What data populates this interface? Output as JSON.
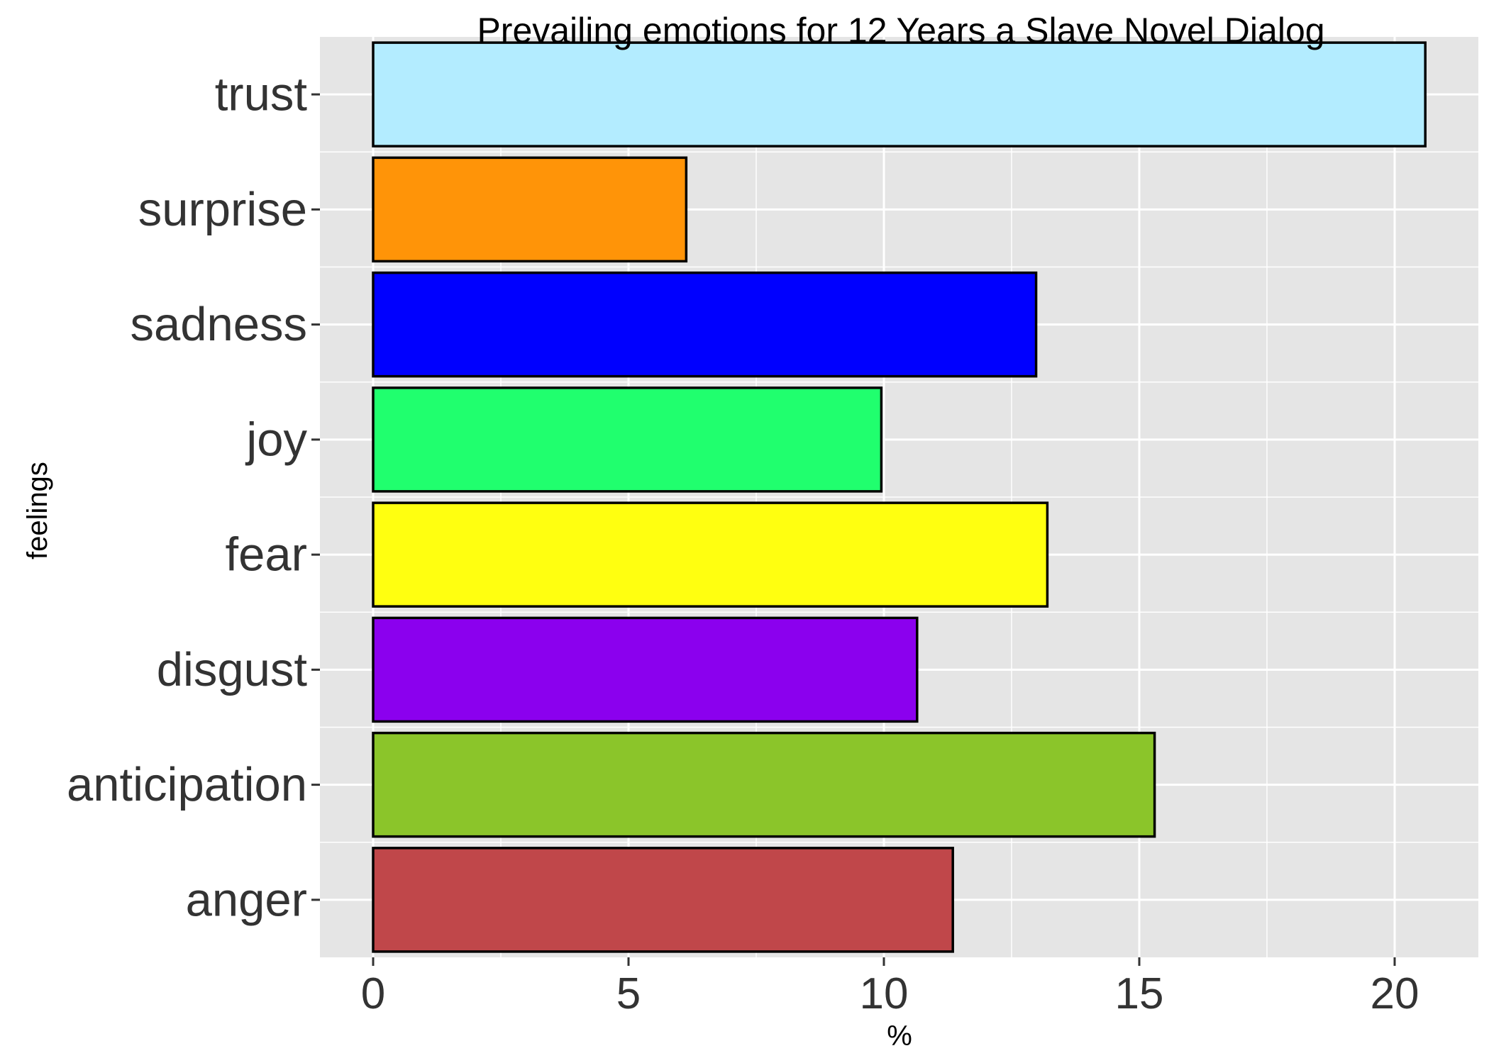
{
  "chart_data": {
    "type": "bar",
    "orientation": "horizontal",
    "title": "Prevailing emotions for 12 Years a Slave Novel Dialog",
    "xlabel": "%",
    "ylabel": "feelings",
    "categories": [
      "anger",
      "anticipation",
      "disgust",
      "fear",
      "joy",
      "sadness",
      "surprise",
      "trust"
    ],
    "values": [
      11.35,
      15.3,
      10.65,
      13.2,
      9.95,
      12.98,
      6.13,
      20.6
    ],
    "colors": [
      "#C0474A",
      "#8BC52A",
      "#8B00EE",
      "#FFFF10",
      "#20FF6E",
      "#0000FF",
      "#FF9408",
      "#B3ECFF"
    ],
    "xlim": [
      -1,
      21.2
    ],
    "x_ticks": [
      0,
      5,
      10,
      15,
      20
    ],
    "x_tick_labels": [
      "0",
      "5",
      "10",
      "15",
      "20"
    ],
    "grid": true,
    "legend": "none"
  }
}
